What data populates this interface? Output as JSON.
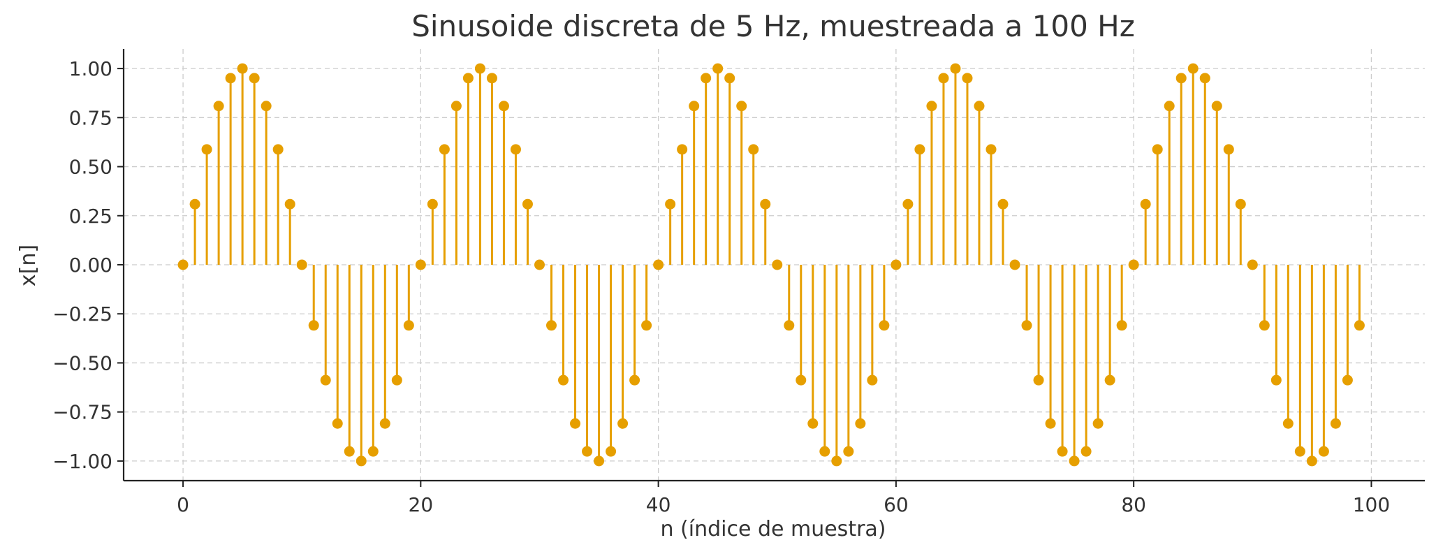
{
  "chart_data": {
    "type": "stem",
    "title": "Sinusoide discreta de 5 Hz, muestreada a 100 Hz",
    "xlabel": "n (índice de muestra)",
    "ylabel": "x[n]",
    "xlim": [
      -5,
      104.5
    ],
    "ylim": [
      -1.1,
      1.1
    ],
    "xticks": [
      0,
      20,
      40,
      60,
      80,
      100
    ],
    "xtick_labels": [
      "0",
      "20",
      "40",
      "60",
      "80",
      "100"
    ],
    "yticks": [
      1.0,
      0.75,
      0.5,
      0.25,
      0.0,
      -0.25,
      -0.5,
      -0.75,
      -1.0
    ],
    "ytick_labels": [
      "1.00",
      "0.75",
      "0.50",
      "0.25",
      "0.00",
      "−0.25",
      "−0.50",
      "−0.75",
      "−1.00"
    ],
    "grid": true,
    "color": "#E69F00",
    "series": [
      {
        "x": [
          0,
          1,
          2,
          3,
          4,
          5,
          6,
          7,
          8,
          9,
          10,
          11,
          12,
          13,
          14,
          15,
          16,
          17,
          18,
          19,
          20,
          21,
          22,
          23,
          24,
          25,
          26,
          27,
          28,
          29,
          30,
          31,
          32,
          33,
          34,
          35,
          36,
          37,
          38,
          39,
          40,
          41,
          42,
          43,
          44,
          45,
          46,
          47,
          48,
          49,
          50,
          51,
          52,
          53,
          54,
          55,
          56,
          57,
          58,
          59,
          60,
          61,
          62,
          63,
          64,
          65,
          66,
          67,
          68,
          69,
          70,
          71,
          72,
          73,
          74,
          75,
          76,
          77,
          78,
          79,
          80,
          81,
          82,
          83,
          84,
          85,
          86,
          87,
          88,
          89,
          90,
          91,
          92,
          93,
          94,
          95,
          96,
          97,
          98,
          99
        ],
        "y": [
          0.0,
          0.309,
          0.588,
          0.809,
          0.951,
          1.0,
          0.951,
          0.809,
          0.588,
          0.309,
          0.0,
          -0.309,
          -0.588,
          -0.809,
          -0.951,
          -1.0,
          -0.951,
          -0.809,
          -0.588,
          -0.309,
          0.0,
          0.309,
          0.588,
          0.809,
          0.951,
          1.0,
          0.951,
          0.809,
          0.588,
          0.309,
          0.0,
          -0.309,
          -0.588,
          -0.809,
          -0.951,
          -1.0,
          -0.951,
          -0.809,
          -0.588,
          -0.309,
          0.0,
          0.309,
          0.588,
          0.809,
          0.951,
          1.0,
          0.951,
          0.809,
          0.588,
          0.309,
          0.0,
          -0.309,
          -0.588,
          -0.809,
          -0.951,
          -1.0,
          -0.951,
          -0.809,
          -0.588,
          -0.309,
          0.0,
          0.309,
          0.588,
          0.809,
          0.951,
          1.0,
          0.951,
          0.809,
          0.588,
          0.309,
          0.0,
          -0.309,
          -0.588,
          -0.809,
          -0.951,
          -1.0,
          -0.951,
          -0.809,
          -0.588,
          -0.309,
          0.0,
          0.309,
          0.588,
          0.809,
          0.951,
          1.0,
          0.951,
          0.809,
          0.588,
          0.309,
          0.0,
          -0.309,
          -0.588,
          -0.809,
          -0.951,
          -1.0,
          -0.951,
          -0.809,
          -0.588,
          -0.309
        ]
      }
    ]
  }
}
